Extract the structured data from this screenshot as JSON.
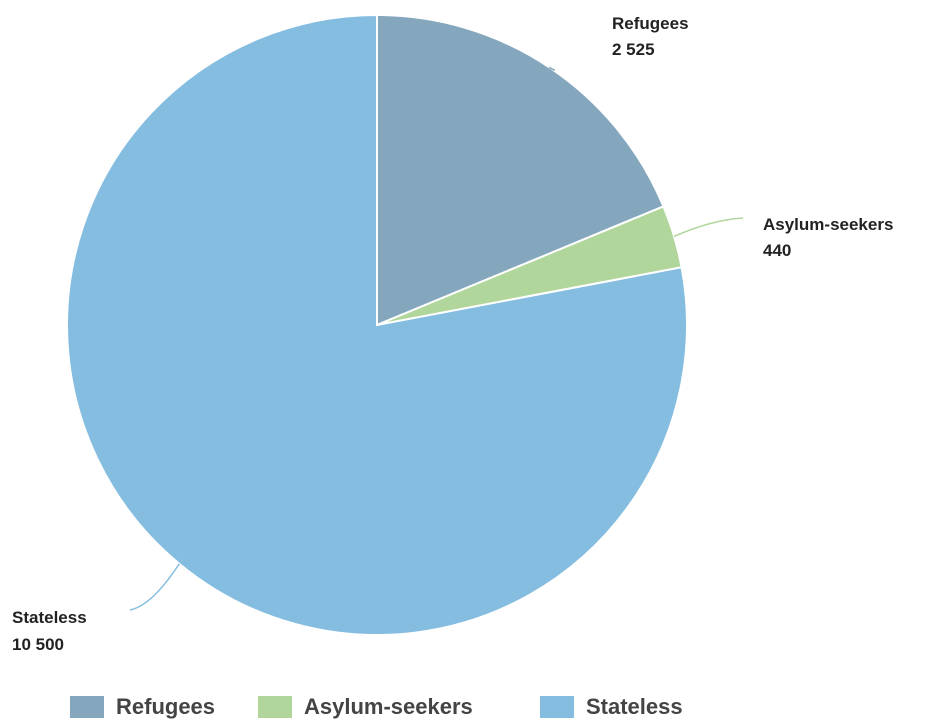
{
  "chart_data": {
    "type": "pie",
    "slices": [
      {
        "name": "Refugees",
        "value": 2525,
        "display": "2 525",
        "color": "#85a7bd"
      },
      {
        "name": "Asylum-seekers",
        "value": 440,
        "display": "440",
        "color": "#b1d69b"
      },
      {
        "name": "Stateless",
        "value": 10500,
        "display": "10 500",
        "color": "#84bde0"
      }
    ],
    "start_angle_deg": 0,
    "direction": "clockwise",
    "legend_position": "bottom"
  }
}
